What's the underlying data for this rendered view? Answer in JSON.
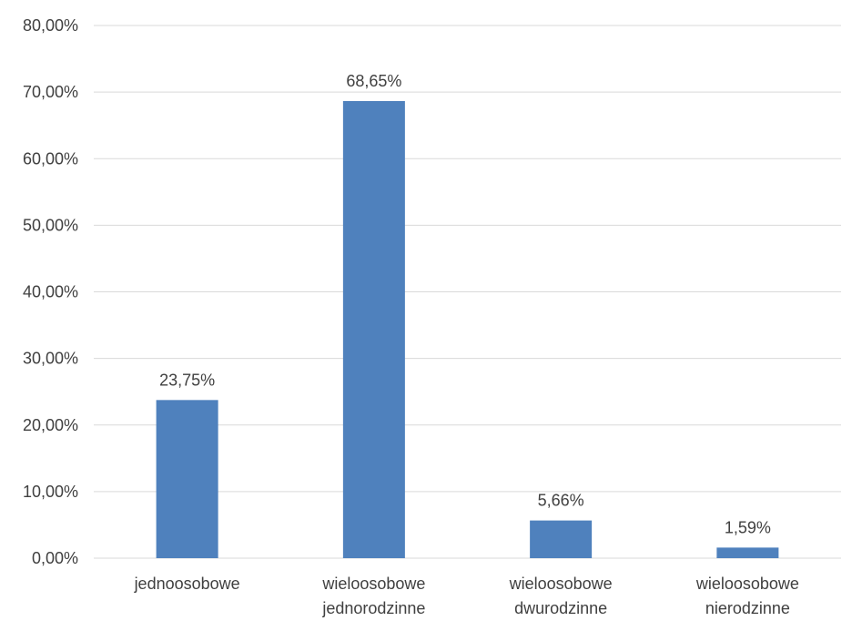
{
  "chart_data": {
    "type": "bar",
    "title": "",
    "xlabel": "",
    "ylabel": "",
    "categories": [
      [
        "jednoosobowe"
      ],
      [
        "wieloosobowe",
        "jednorodzinne"
      ],
      [
        "wieloosobowe",
        "dwurodzinne"
      ],
      [
        "wieloosobowe",
        "nierodzinne"
      ]
    ],
    "values": [
      23.75,
      68.65,
      5.66,
      1.59
    ],
    "value_labels": [
      "23,75%",
      "68,65%",
      "5,66%",
      "1,59%"
    ],
    "ylim": [
      0,
      80
    ],
    "yticks": [
      0,
      10,
      20,
      30,
      40,
      50,
      60,
      70,
      80
    ],
    "ytick_labels": [
      "0,00%",
      "10,00%",
      "20,00%",
      "30,00%",
      "40,00%",
      "50,00%",
      "60,00%",
      "70,00%",
      "80,00%"
    ],
    "grid": true,
    "legend": "none",
    "colors": {
      "bar": "#4f81bd",
      "grid": "#d9d9d9",
      "text": "#404040"
    }
  }
}
